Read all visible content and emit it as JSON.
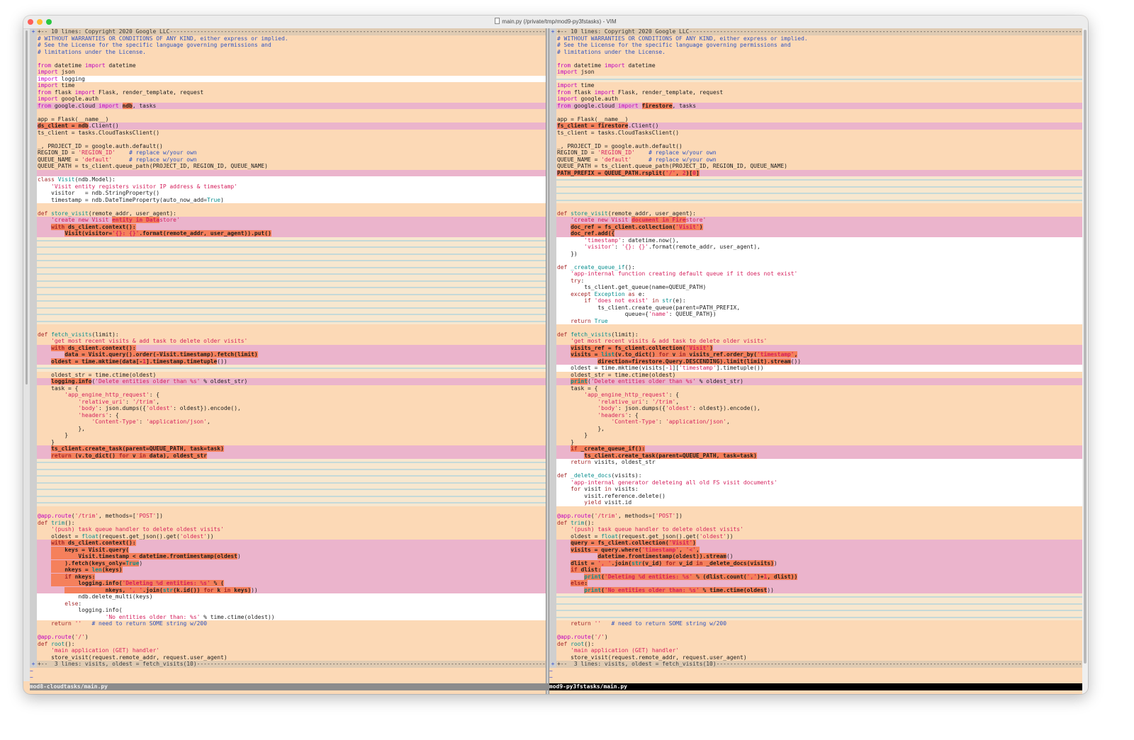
{
  "window": {
    "title": "main.py (/private/tmp/mod9-py3fstasks) - VIM"
  },
  "colors": {
    "normal_bg": "#fcd9b6",
    "changed_bg": "#ebb4cc",
    "changed_text_bg": "#f5805c",
    "added_bg": "#ffffff",
    "filler_line": "#93cbe0",
    "fold_bg": "#dfcbb3"
  },
  "fold_sign": "+",
  "tilde": "~",
  "status": {
    "left": "mod8-cloudtasks/main.py",
    "right": "mod9-py3fstasks/main.py"
  },
  "rows": [
    [
      "z",
      "+-- 10 lines: Copyright 2020 Google LLC"
    ],
    [
      "s",
      "# WITHOUT WARRANTIES OR CONDITIONS OF ANY KIND, either express or implied."
    ],
    [
      "s",
      "# See the License for the specific language governing permissions and"
    ],
    [
      "s",
      "# limitations under the License."
    ],
    [
      "s",
      ""
    ],
    [
      "s",
      "from datetime import datetime"
    ],
    [
      "s",
      "import json"
    ],
    [
      "a",
      "import logging",
      "f",
      ""
    ],
    [
      "s",
      "import time"
    ],
    [
      "s",
      "from flask import Flask, render_template, request"
    ],
    [
      "s",
      "import google.auth"
    ],
    [
      "c",
      [
        "from google.cloud import ",
        "ndb",
        ", tasks"
      ],
      "c",
      [
        "from google.cloud import ",
        "firestore",
        ", tasks"
      ]
    ],
    [
      "s",
      ""
    ],
    [
      "s",
      "app = Flask(__name__)"
    ],
    [
      "c",
      [
        "",
        "ds_client = ndb",
        ".Client()"
      ],
      "c",
      [
        "",
        "fs_client = firestore",
        ".Client()"
      ]
    ],
    [
      "s",
      "ts_client = tasks.CloudTasksClient()"
    ],
    [
      "s",
      ""
    ],
    [
      "s",
      "_, PROJECT_ID = google.auth.default()"
    ],
    [
      "s",
      "REGION_ID = 'REGION_ID'    # replace w/your own"
    ],
    [
      "s",
      "QUEUE_NAME = 'default'     # replace w/your own"
    ],
    [
      "s",
      "QUEUE_PATH = ts_client.queue_path(PROJECT_ID, REGION_ID, QUEUE_NAME)"
    ],
    [
      "c",
      "",
      "c",
      [
        "",
        "PATH_PREFIX = QUEUE_PATH.rsplit('/', 2)[0]"
      ]
    ],
    [
      "a",
      "class Visit(ndb.Model):",
      "f",
      ""
    ],
    [
      "a",
      "    'Visit entity registers visitor IP address & timestamp'",
      "f",
      ""
    ],
    [
      "a",
      "    visitor   = ndb.StringProperty()",
      "f",
      ""
    ],
    [
      "a",
      "    timestamp = ndb.DateTimeProperty(auto_now_add=True)",
      "f",
      ""
    ],
    [
      "s",
      ""
    ],
    [
      "s",
      "def store_visit(remote_addr, user_agent):"
    ],
    [
      "c",
      [
        "    'create new Visit ",
        "entity in Data",
        "store'"
      ],
      "c",
      [
        "    'create new Visit ",
        "document in Fire",
        "store'"
      ]
    ],
    [
      "c",
      [
        "    ",
        "with ds_client.context():"
      ],
      "c",
      [
        "    ",
        "doc_ref = fs_client.collection('Visit')"
      ]
    ],
    [
      "c",
      [
        "        ",
        "Visit(visitor='{}: {}'.format(remote_addr, user_agent)).put()"
      ],
      "c",
      [
        "    ",
        "doc_ref.add({"
      ]
    ],
    [
      "f",
      "",
      "a",
      "        'timestamp': datetime.now(),"
    ],
    [
      "f",
      "",
      "a",
      "        'visitor': '{}: {}'.format(remote_addr, user_agent),"
    ],
    [
      "f",
      "",
      "a",
      "    })"
    ],
    [
      "f",
      "",
      "a",
      ""
    ],
    [
      "f",
      "",
      "a",
      "def _create_queue_if():"
    ],
    [
      "f",
      "",
      "a",
      "    'app-internal function creating default queue if it does not exist'"
    ],
    [
      "f",
      "",
      "a",
      "    try:"
    ],
    [
      "f",
      "",
      "a",
      "        ts_client.get_queue(name=QUEUE_PATH)"
    ],
    [
      "f",
      "",
      "a",
      "    except Exception as e:"
    ],
    [
      "f",
      "",
      "a",
      "        if 'does not exist' in str(e):"
    ],
    [
      "f",
      "",
      "a",
      "            ts_client.create_queue(parent=PATH_PREFIX,"
    ],
    [
      "f",
      "",
      "a",
      "                    queue={'name': QUEUE_PATH})"
    ],
    [
      "f",
      "",
      "a",
      "    return True"
    ],
    [
      "s",
      ""
    ],
    [
      "s",
      "def fetch_visits(limit):"
    ],
    [
      "s",
      "    'get most recent visits & add task to delete older visits'"
    ],
    [
      "c",
      [
        "    ",
        "with ds_client.context():"
      ],
      "c",
      [
        "    ",
        "visits_ref = fs_client.collection('Visit')"
      ]
    ],
    [
      "c",
      [
        "        ",
        "data = Visit.query().order(-Visit.timestamp).fetch(limit)"
      ],
      "c",
      [
        "    ",
        "visits = list(v.to_dict() for v in visits_ref.order_by('timestamp',"
      ]
    ],
    [
      "c",
      [
        "    ",
        "oldest = time.mktime(data[-1].timestamp.timetuple",
        "())"
      ],
      "c",
      [
        "            ",
        "direction=firestore.Query.DESCENDING).limit(limit).stream",
        "())"
      ]
    ],
    [
      "f",
      "",
      "a",
      "    oldest = time.mktime(visits[-1]['timestamp'].timetuple())"
    ],
    [
      "s",
      "    oldest_str = time.ctime(oldest)"
    ],
    [
      "c",
      [
        "    ",
        "logging.info",
        "('Delete entities older than %s' % oldest_str)"
      ],
      "c",
      [
        "    ",
        "print",
        "('Delete entities older than %s' % oldest_str)"
      ]
    ],
    [
      "s",
      "    task = {"
    ],
    [
      "s",
      "        'app_engine_http_request': {"
    ],
    [
      "s",
      "            'relative_uri': '/trim',"
    ],
    [
      "s",
      "            'body': json.dumps({'oldest': oldest}).encode(),"
    ],
    [
      "s",
      "            'headers': {"
    ],
    [
      "s",
      "                'Content-Type': 'application/json',"
    ],
    [
      "s",
      "            },"
    ],
    [
      "s",
      "        }"
    ],
    [
      "s",
      "    }"
    ],
    [
      "c",
      [
        "    ",
        "ts_client.create_task(parent=QUEUE_PATH, task=task)"
      ],
      "c",
      [
        "    ",
        "if _create_queue_if():"
      ]
    ],
    [
      "c",
      [
        "    ",
        "return (v.to_dict() for v in data), oldest_str"
      ],
      "c",
      [
        "        ",
        "ts_client.create_task(parent=QUEUE_PATH, task=task)"
      ]
    ],
    [
      "f",
      "",
      "a",
      "    return visits, oldest_str"
    ],
    [
      "f",
      "",
      "a",
      ""
    ],
    [
      "f",
      "",
      "a",
      "def _delete_docs(visits):"
    ],
    [
      "f",
      "",
      "a",
      "    'app-internal generator deleteing all old FS visit documents'"
    ],
    [
      "f",
      "",
      "a",
      "    for visit in visits:"
    ],
    [
      "f",
      "",
      "a",
      "        visit.reference.delete()"
    ],
    [
      "f",
      "",
      "a",
      "        yield visit.id"
    ],
    [
      "s",
      ""
    ],
    [
      "s",
      "@app.route('/trim', methods=['POST'])"
    ],
    [
      "s",
      "def trim():"
    ],
    [
      "s",
      "    '(push) task queue handler to delete oldest visits'"
    ],
    [
      "s",
      "    oldest = float(request.get_json().get('oldest'))"
    ],
    [
      "c",
      [
        "    ",
        "with ds_client.context():"
      ],
      "c",
      [
        "    ",
        "query = fs_client.collection('Visit')"
      ]
    ],
    [
      "c",
      [
        "    ",
        "    keys = Visit.query("
      ],
      "c",
      [
        "    ",
        "visits = query.where('timestamp', '<',"
      ]
    ],
    [
      "c",
      [
        "    ",
        "        Visit.timestamp < datetime.fromtimestamp(oldest",
        ")"
      ],
      "c",
      [
        "            ",
        "datetime.fromtimestamp(oldest)).stream",
        "()"
      ]
    ],
    [
      "c",
      [
        "    ",
        "    ).fetch(keys_only=True",
        ")"
      ],
      "c",
      [
        "    ",
        "dlist = ', '.join(str(v_id) for v_id in _delete_docs(visits)",
        ")"
      ]
    ],
    [
      "c",
      [
        "    ",
        "    nkeys = len(keys)"
      ],
      "c",
      [
        "    ",
        "if dlist:"
      ]
    ],
    [
      "c",
      [
        "    ",
        "    if nkeys:"
      ],
      "c",
      [
        "        ",
        "print('Deleting %d entities: %s' % (dlist.count(',')+1, dlist))"
      ]
    ],
    [
      "c",
      [
        "    ",
        "        logging.info('Deleting %d entities: %s' % ("
      ],
      "c",
      [
        "    ",
        "else:"
      ]
    ],
    [
      "c",
      [
        "        ",
        "            nkeys, ', '.join(str(k.id()) for k in keys)",
        "))"
      ],
      "c",
      [
        "        ",
        "print('No entities older than: %s' % time.ctime(oldest",
        "))"
      ]
    ],
    [
      "a",
      "            ndb.delete_multi(keys)",
      "f",
      ""
    ],
    [
      "a",
      "        else:",
      "f",
      ""
    ],
    [
      "a",
      "            logging.info(",
      "f",
      ""
    ],
    [
      "a",
      "                    'No entities older than: %s' % time.ctime(oldest))",
      "f",
      ""
    ],
    [
      "s",
      "    return ''   # need to return SOME string w/200"
    ],
    [
      "s",
      ""
    ],
    [
      "s",
      "@app.route('/')"
    ],
    [
      "s",
      "def root():"
    ],
    [
      "s",
      "    'main application (GET) handler'"
    ],
    [
      "s",
      "    store_visit(request.remote_addr, request.user_agent)"
    ],
    [
      "z",
      "+--  3 lines: visits, oldest = fetch_visits(10)"
    ]
  ]
}
